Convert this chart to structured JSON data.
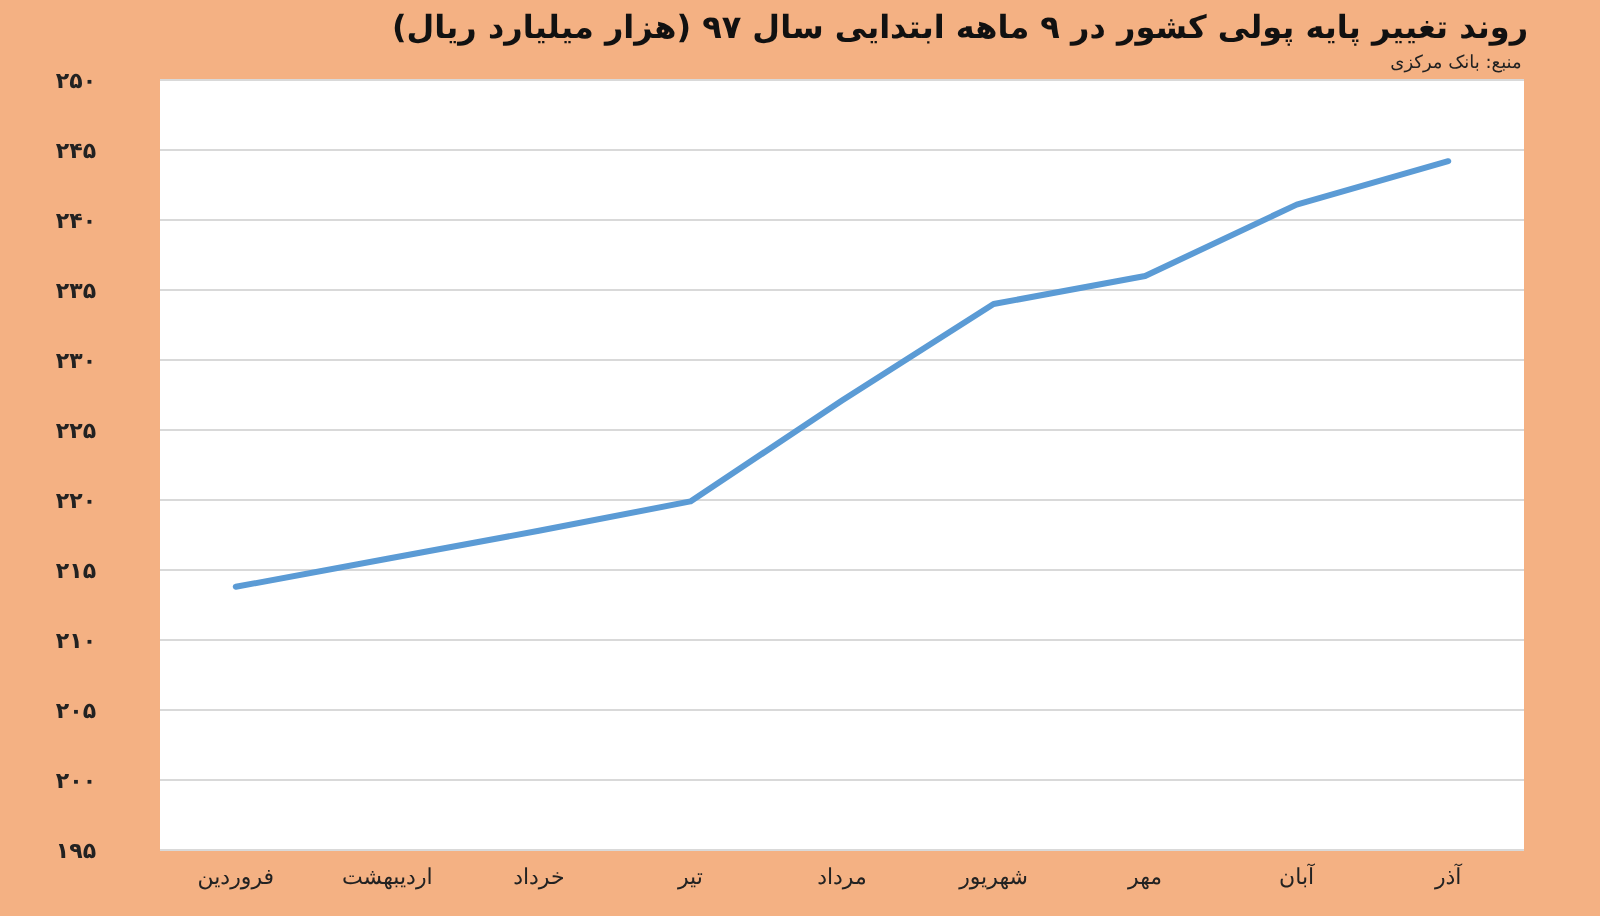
{
  "chart_data": {
    "type": "line",
    "title": "روند تغییر پایه پولی کشور در ۹ ماهه ابتدایی سال ۹۷ (هزار میلیارد ریال)",
    "annotations": [
      "منبع: بانک مرکزی"
    ],
    "categories": [
      "فروردین",
      "اردیبهشت",
      "خرداد",
      "تیر",
      "مرداد",
      "شهریور",
      "مهر",
      "آبان",
      "آذر"
    ],
    "values": [
      213.8,
      215.8,
      217.8,
      219.9,
      227.1,
      234.0,
      236.0,
      241.1,
      244.2
    ],
    "color": "#5b9bd5",
    "ylim": [
      195,
      250
    ],
    "yticks": [
      {
        "value": 195,
        "label": "۱۹۵"
      },
      {
        "value": 200,
        "label": "۲۰۰"
      },
      {
        "value": 205,
        "label": "۲۰۵"
      },
      {
        "value": 210,
        "label": "۲۱۰"
      },
      {
        "value": 215,
        "label": "۲۱۵"
      },
      {
        "value": 220,
        "label": "۲۲۰"
      },
      {
        "value": 225,
        "label": "۲۲۵"
      },
      {
        "value": 230,
        "label": "۲۳۰"
      },
      {
        "value": 235,
        "label": "۲۳۵"
      },
      {
        "value": 240,
        "label": "۲۴۰"
      },
      {
        "value": 245,
        "label": "۲۴۵"
      },
      {
        "value": 250,
        "label": "۲۵۰"
      }
    ],
    "grid": "y",
    "line_style": "solid"
  }
}
